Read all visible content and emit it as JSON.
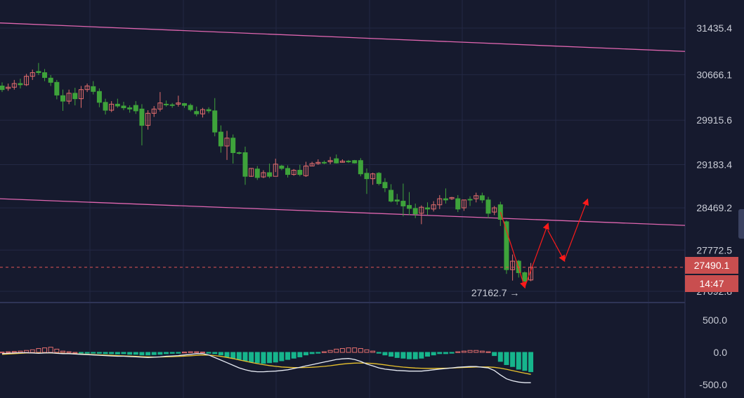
{
  "colors": {
    "background": "#161a2e",
    "grid": "#232844",
    "up": "#e26d6d",
    "down": "#3ea33b",
    "channel": "#e066b0",
    "projection": "#ff1a1a",
    "price_line": "#e05555",
    "macd_line": "#e8ecf5",
    "signal_line": "#e9c22d",
    "hist_pos": "#e26d6d",
    "hist_neg": "#16b58c"
  },
  "chart_data": {
    "type": "candlestick",
    "price_ticks": [
      "31435.4",
      "30666.1",
      "29915.6",
      "29183.4",
      "28469.2",
      "27772.5",
      "27092.8"
    ],
    "indicator_ticks": [
      "500.0",
      "0.0",
      "-500.0"
    ],
    "last_price": "27490.1",
    "countdown": "14:47",
    "low_marker": "27162.7",
    "ohlc": [
      [
        30480,
        30540,
        30420,
        30380
      ],
      [
        30440,
        30520,
        30460,
        30400
      ],
      [
        30460,
        30580,
        30520,
        30420
      ],
      [
        30520,
        30600,
        30500,
        30440
      ],
      [
        30500,
        30680,
        30640,
        30480
      ],
      [
        30640,
        30750,
        30700,
        30580
      ],
      [
        30720,
        30860,
        30700,
        30660
      ],
      [
        30700,
        30760,
        30620,
        30560
      ],
      [
        30610,
        30660,
        30540,
        30480
      ],
      [
        30540,
        30580,
        30330,
        30260
      ],
      [
        30320,
        30420,
        30230,
        30070
      ],
      [
        30230,
        30420,
        30360,
        30180
      ],
      [
        30360,
        30450,
        30270,
        30160
      ],
      [
        30270,
        30480,
        30420,
        30120
      ],
      [
        30420,
        30520,
        30480,
        30380
      ],
      [
        30470,
        30560,
        30390,
        30340
      ],
      [
        30390,
        30440,
        30210,
        30130
      ],
      [
        30210,
        30270,
        30080,
        30010
      ],
      [
        30080,
        30230,
        30180,
        30050
      ],
      [
        30180,
        30270,
        30150,
        30120
      ],
      [
        30150,
        30220,
        30120,
        30080
      ],
      [
        30120,
        30160,
        30100,
        30040
      ],
      [
        30160,
        30230,
        30070,
        30020
      ],
      [
        30100,
        30180,
        29830,
        29500
      ],
      [
        29830,
        30080,
        30030,
        29760
      ],
      [
        30030,
        30150,
        30100,
        29970
      ],
      [
        30100,
        30380,
        30200,
        30060
      ],
      [
        30180,
        30240,
        30170,
        30140
      ],
      [
        30170,
        30200,
        30160,
        30120
      ],
      [
        30180,
        30320,
        30200,
        30140
      ],
      [
        30190,
        30200,
        30160,
        30120
      ],
      [
        30160,
        30190,
        30090,
        30060
      ],
      [
        30060,
        30140,
        30020,
        29980
      ],
      [
        30020,
        30120,
        30090,
        29960
      ],
      [
        30090,
        30130,
        30070,
        30030
      ],
      [
        30070,
        30280,
        29720,
        29650
      ],
      [
        29720,
        29830,
        29490,
        29380
      ],
      [
        29490,
        29740,
        29620,
        29260
      ],
      [
        29620,
        29680,
        29380,
        29200
      ],
      [
        29380,
        29400,
        29370,
        29350
      ],
      [
        29380,
        29480,
        28990,
        28850
      ],
      [
        28990,
        29120,
        29120,
        28980
      ],
      [
        29110,
        29160,
        28970,
        28930
      ],
      [
        28980,
        29090,
        29050,
        28960
      ],
      [
        29050,
        29200,
        28990,
        28960
      ],
      [
        28990,
        29280,
        29190,
        29060
      ],
      [
        29160,
        29180,
        29120,
        29090
      ],
      [
        29120,
        29170,
        29020,
        28970
      ],
      [
        29020,
        29110,
        29090,
        29000
      ],
      [
        29090,
        29180,
        29020,
        28990
      ],
      [
        29000,
        29230,
        29160,
        28980
      ],
      [
        29160,
        29230,
        29200,
        29160
      ],
      [
        29200,
        29270,
        29220,
        29180
      ],
      [
        29220,
        29250,
        29210,
        29190
      ],
      [
        29230,
        29310,
        29250,
        29190
      ],
      [
        29280,
        29350,
        29210,
        29200
      ],
      [
        29220,
        29270,
        29240,
        29220
      ],
      [
        29240,
        29260,
        29230,
        29210
      ],
      [
        29250,
        29260,
        29210,
        29200
      ],
      [
        29250,
        29290,
        29030,
        28990
      ],
      [
        29040,
        29120,
        28950,
        28700
      ],
      [
        28950,
        29050,
        29030,
        28850
      ],
      [
        29040,
        29060,
        28870,
        28840
      ],
      [
        28890,
        28960,
        28800,
        28730
      ],
      [
        28760,
        28860,
        28580,
        28560
      ],
      [
        28600,
        28700,
        28580,
        28520
      ],
      [
        28580,
        28870,
        28500,
        28330
      ],
      [
        28510,
        28730,
        28460,
        28350
      ],
      [
        28460,
        28540,
        28370,
        28300
      ],
      [
        28380,
        28510,
        28480,
        28200
      ],
      [
        28470,
        28560,
        28450,
        28350
      ],
      [
        28450,
        28580,
        28520,
        28410
      ],
      [
        28520,
        28680,
        28620,
        28450
      ],
      [
        28620,
        28790,
        28600,
        28540
      ],
      [
        28620,
        28650,
        28640,
        28600
      ],
      [
        28620,
        28680,
        28450,
        28400
      ],
      [
        28470,
        28600,
        28600,
        28420
      ],
      [
        28610,
        28660,
        28600,
        28500
      ],
      [
        28620,
        28720,
        28670,
        28560
      ],
      [
        28670,
        28720,
        28600,
        28550
      ],
      [
        28600,
        28650,
        28380,
        28300
      ],
      [
        28400,
        28500,
        28470,
        28350
      ],
      [
        28520,
        28570,
        28280,
        28170
      ],
      [
        28240,
        28260,
        27450,
        27380
      ],
      [
        27450,
        27700,
        27590,
        27270
      ],
      [
        27590,
        27610,
        27400,
        27320
      ],
      [
        27400,
        27420,
        27260,
        27162.7
      ],
      [
        27280,
        27560,
        27490,
        27260
      ]
    ],
    "macd_hist": [
      5,
      10,
      15,
      20,
      30,
      40,
      60,
      70,
      80,
      50,
      20,
      10,
      0,
      -5,
      -10,
      -10,
      -15,
      -20,
      -20,
      -25,
      -20,
      -30,
      -30,
      -40,
      -40,
      -35,
      -30,
      -20,
      -15,
      -10,
      5,
      10,
      10,
      5,
      -5,
      -20,
      -40,
      -70,
      -90,
      -110,
      -130,
      -150,
      -160,
      -170,
      -160,
      -150,
      -130,
      -110,
      -90,
      -70,
      -40,
      -20,
      -10,
      10,
      30,
      50,
      60,
      70,
      70,
      60,
      40,
      20,
      -10,
      -40,
      -60,
      -80,
      -90,
      -100,
      -100,
      -90,
      -60,
      -40,
      -20,
      -20,
      -10,
      10,
      20,
      30,
      30,
      20,
      10,
      -50,
      -140,
      -190,
      -220,
      -260,
      -280,
      -300
    ],
    "macd_line": [
      -20,
      -15,
      -10,
      -5,
      -5,
      -10,
      -15,
      -10,
      -5,
      -15,
      -20,
      -20,
      -25,
      -30,
      -35,
      -40,
      -45,
      -50,
      -55,
      -60,
      -60,
      -65,
      -70,
      -75,
      -80,
      -75,
      -70,
      -60,
      -55,
      -50,
      -40,
      -30,
      -20,
      -20,
      -40,
      -80,
      -120,
      -160,
      -200,
      -240,
      -270,
      -290,
      -300,
      -300,
      -295,
      -290,
      -280,
      -270,
      -250,
      -230,
      -210,
      -190,
      -170,
      -150,
      -130,
      -110,
      -100,
      -95,
      -110,
      -140,
      -180,
      -210,
      -240,
      -260,
      -270,
      -280,
      -285,
      -290,
      -290,
      -290,
      -280,
      -270,
      -260,
      -250,
      -240,
      -230,
      -225,
      -220,
      -220,
      -230,
      -240,
      -280,
      -350,
      -410,
      -440,
      -460,
      -470,
      -470
    ],
    "signal_line": [
      -30,
      -25,
      -20,
      -15,
      -10,
      -10,
      -10,
      -10,
      -10,
      -12,
      -15,
      -18,
      -22,
      -26,
      -30,
      -34,
      -38,
      -42,
      -46,
      -50,
      -54,
      -58,
      -62,
      -66,
      -70,
      -72,
      -72,
      -70,
      -66,
      -62,
      -58,
      -52,
      -46,
      -40,
      -42,
      -50,
      -62,
      -78,
      -96,
      -116,
      -136,
      -156,
      -174,
      -190,
      -204,
      -216,
      -226,
      -232,
      -236,
      -236,
      -234,
      -230,
      -224,
      -216,
      -206,
      -194,
      -182,
      -172,
      -166,
      -164,
      -166,
      -172,
      -182,
      -194,
      -206,
      -218,
      -228,
      -236,
      -242,
      -246,
      -248,
      -248,
      -247,
      -245,
      -242,
      -238,
      -234,
      -230,
      -227,
      -226,
      -226,
      -232,
      -245,
      -262,
      -283,
      -303,
      -322,
      -340
    ],
    "channel": {
      "upper": [
        31520,
        31050
      ],
      "lower": [
        28620,
        28180
      ]
    },
    "projection_path": [
      [
        27162.7,
        28200
      ],
      [
        28100,
        27600
      ],
      [
        27600,
        28600
      ]
    ]
  }
}
